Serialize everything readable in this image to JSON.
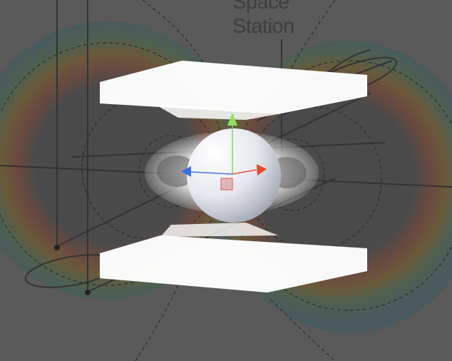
{
  "scene": {
    "diagram_label_line1": "Space",
    "diagram_label_line2": "Station"
  },
  "icons": {
    "gizmo_y": "green-arrow-up",
    "gizmo_x": "red-arrow-right",
    "gizmo_z": "blue-arrow-left",
    "gizmo_center": "red-square"
  }
}
